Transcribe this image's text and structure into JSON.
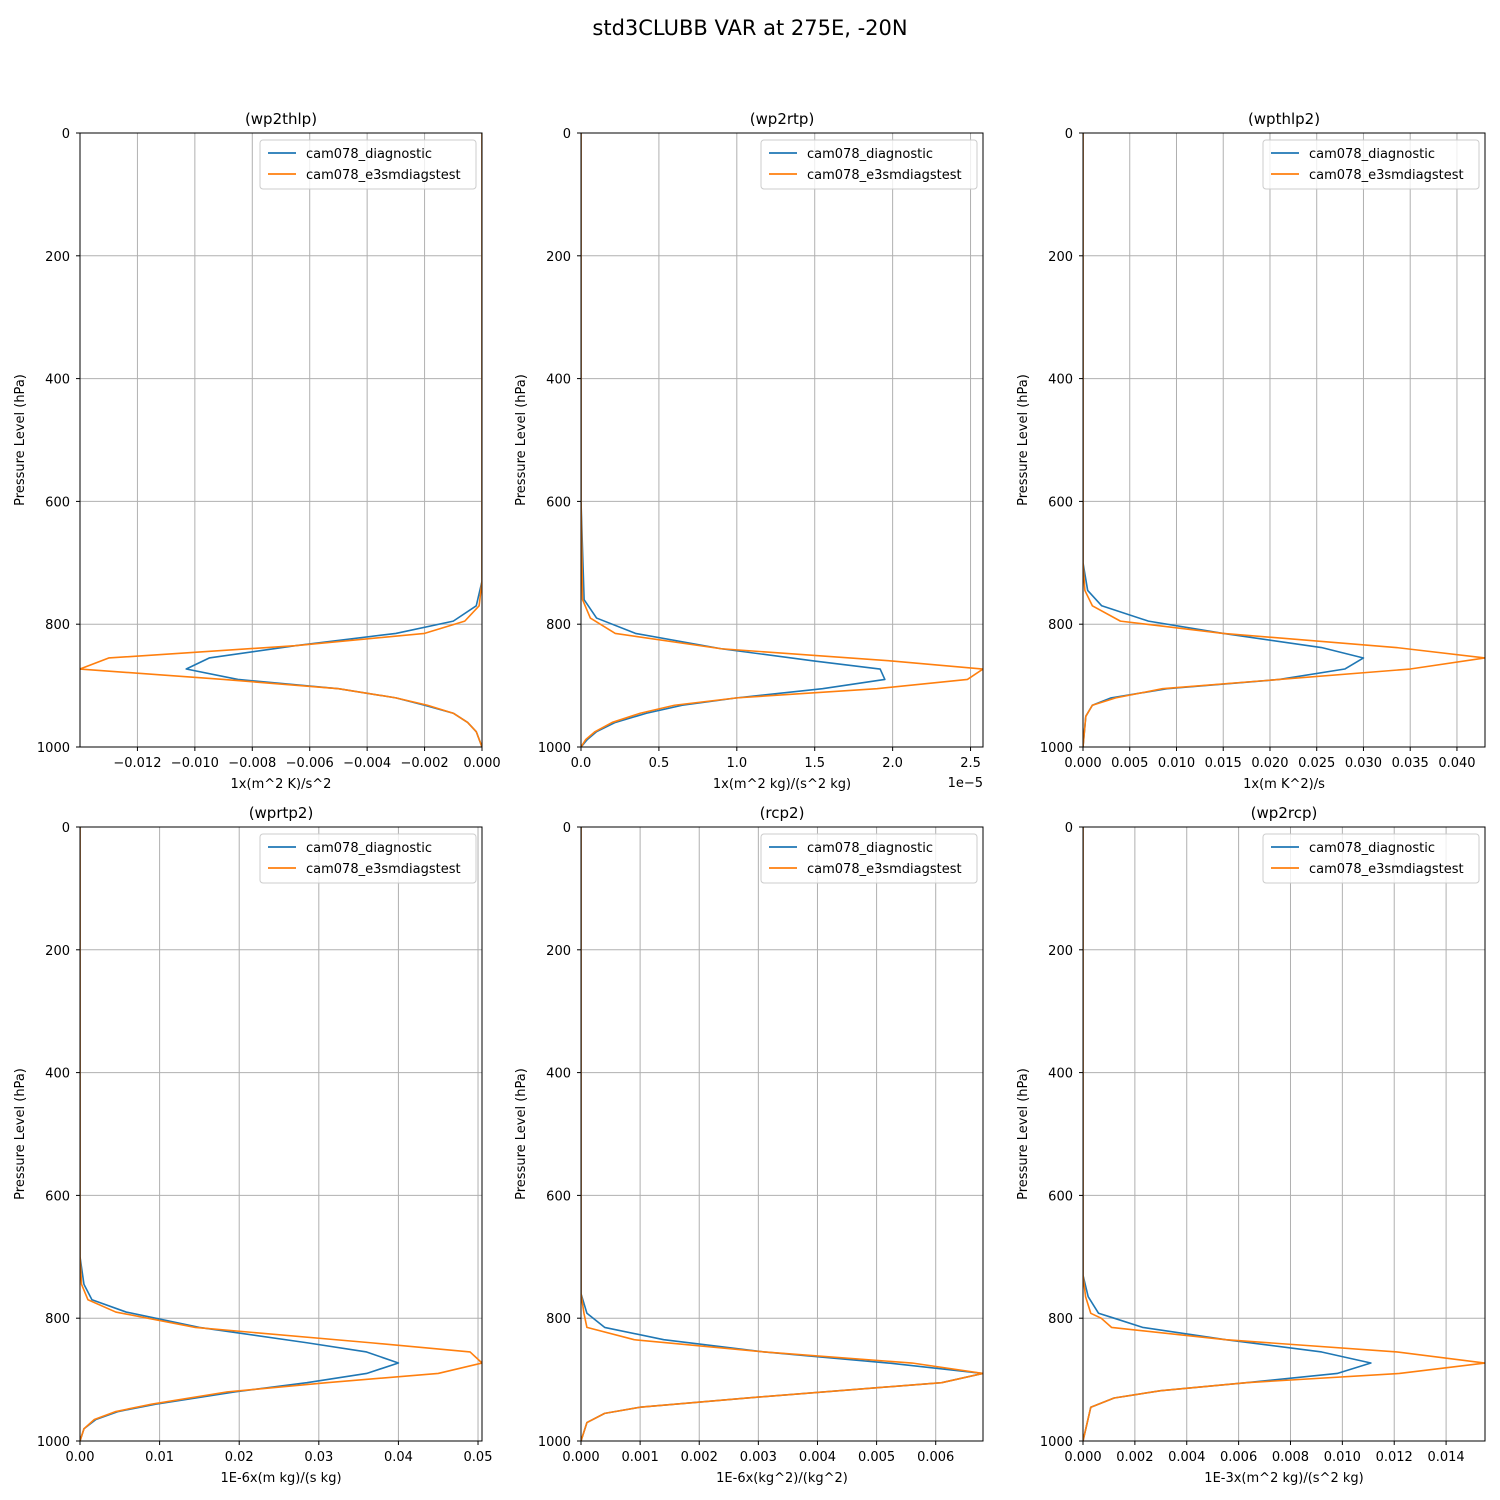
{
  "figure": {
    "suptitle": "std3CLUBB VAR at 275E, -20N"
  },
  "colors": {
    "cam078_diagnostic": "#1f77b4",
    "cam078_e3smdiagstest": "#ff7f0e",
    "grid": "#b0b0b0"
  },
  "chart_data": [
    {
      "type": "line",
      "title": "(wp2thlp)",
      "xlabel": "1x(m^2 K)/s^2",
      "ylabel": "Pressure Level (hPa)",
      "xlim": [
        -0.014,
        0.0
      ],
      "ylim": [
        1000,
        0
      ],
      "xticks": [
        -0.012,
        -0.01,
        -0.008,
        -0.006,
        -0.004,
        -0.002,
        0.0
      ],
      "xticklabels": [
        "−0.012",
        "−0.010",
        "−0.008",
        "−0.006",
        "−0.004",
        "−0.002",
        "0.000"
      ],
      "yticks": [
        0,
        200,
        400,
        600,
        800,
        1000
      ],
      "yticklabels": [
        "0",
        "200",
        "400",
        "600",
        "800",
        "1000"
      ],
      "x_offset_label": "",
      "legend": {
        "position": "upper right",
        "entries": [
          "cam078_diagnostic",
          "cam078_e3smdiagstest"
        ]
      },
      "grid": true,
      "series": [
        {
          "name": "cam078_diagnostic",
          "x": [
            0.0,
            0.0,
            0.0,
            0.0,
            -0.0002,
            -0.001,
            -0.003,
            -0.0065,
            -0.0095,
            -0.0103,
            -0.0085,
            -0.005,
            -0.003,
            -0.002,
            -0.001,
            -0.0005,
            -0.0002,
            0.0
          ],
          "y": [
            0,
            200,
            500,
            730,
            770,
            795,
            815,
            835,
            855,
            873,
            890,
            905,
            920,
            932,
            945,
            960,
            975,
            1000
          ]
        },
        {
          "name": "cam078_e3smdiagstest",
          "x": [
            0.0,
            0.0,
            0.0,
            0.0,
            -0.0001,
            -0.0006,
            -0.002,
            -0.0065,
            -0.013,
            -0.014,
            -0.009,
            -0.005,
            -0.003,
            -0.0019,
            -0.001,
            -0.0005,
            -0.0002,
            0.0
          ],
          "y": [
            0,
            200,
            500,
            730,
            770,
            795,
            815,
            835,
            855,
            873,
            890,
            905,
            920,
            932,
            945,
            960,
            975,
            1000
          ]
        }
      ]
    },
    {
      "type": "line",
      "title": "(wp2rtp)",
      "xlabel": "1x(m^2 kg)/(s^2 kg)",
      "ylabel": "Pressure Level (hPa)",
      "xlim": [
        0.0,
        2.58
      ],
      "ylim": [
        1000,
        0
      ],
      "xticks": [
        0.0,
        0.5,
        1.0,
        1.5,
        2.0,
        2.5
      ],
      "xticklabels": [
        "0.0",
        "0.5",
        "1.0",
        "1.5",
        "2.0",
        "2.5"
      ],
      "yticks": [
        0,
        200,
        400,
        600,
        800,
        1000
      ],
      "yticklabels": [
        "0",
        "200",
        "400",
        "600",
        "800",
        "1000"
      ],
      "x_offset_label": "1e−5",
      "legend": {
        "position": "upper right",
        "entries": [
          "cam078_diagnostic",
          "cam078_e3smdiagstest"
        ]
      },
      "grid": true,
      "series": [
        {
          "name": "cam078_diagnostic",
          "x": [
            0.0,
            0.0,
            0.0,
            0.02,
            0.1,
            0.35,
            0.9,
            1.5,
            1.92,
            1.95,
            1.55,
            1.0,
            0.65,
            0.42,
            0.22,
            0.1,
            0.04,
            0.0
          ],
          "y": [
            0,
            200,
            600,
            760,
            790,
            815,
            840,
            860,
            873,
            890,
            905,
            920,
            932,
            945,
            960,
            975,
            988,
            1000
          ]
        },
        {
          "name": "cam078_e3smdiagstest",
          "x": [
            0.0,
            0.0,
            0.0,
            0.01,
            0.06,
            0.22,
            0.9,
            2.0,
            2.58,
            2.48,
            1.9,
            1.0,
            0.6,
            0.38,
            0.2,
            0.09,
            0.03,
            0.0
          ],
          "y": [
            0,
            200,
            600,
            760,
            790,
            815,
            840,
            860,
            873,
            890,
            905,
            920,
            932,
            945,
            960,
            975,
            988,
            1000
          ]
        }
      ]
    },
    {
      "type": "line",
      "title": "(wpthlp2)",
      "xlabel": "1x(m K^2)/s",
      "ylabel": "Pressure Level (hPa)",
      "xlim": [
        0.0,
        0.043
      ],
      "ylim": [
        1000,
        0
      ],
      "xticks": [
        0.0,
        0.005,
        0.01,
        0.015,
        0.02,
        0.025,
        0.03,
        0.035,
        0.04
      ],
      "xticklabels": [
        "0.000",
        "0.005",
        "0.010",
        "0.015",
        "0.020",
        "0.025",
        "0.030",
        "0.035",
        "0.040"
      ],
      "yticks": [
        0,
        200,
        400,
        600,
        800,
        1000
      ],
      "yticklabels": [
        "0",
        "200",
        "400",
        "600",
        "800",
        "1000"
      ],
      "x_offset_label": "",
      "legend": {
        "position": "upper right",
        "entries": [
          "cam078_diagnostic",
          "cam078_e3smdiagstest"
        ]
      },
      "grid": true,
      "series": [
        {
          "name": "cam078_diagnostic",
          "x": [
            0.0,
            0.0,
            0.0,
            0.0005,
            0.002,
            0.007,
            0.015,
            0.0255,
            0.03,
            0.028,
            0.021,
            0.009,
            0.003,
            0.001,
            0.0003,
            0.0
          ],
          "y": [
            0,
            200,
            700,
            745,
            770,
            795,
            815,
            838,
            855,
            873,
            890,
            905,
            920,
            932,
            950,
            1000
          ]
        },
        {
          "name": "cam078_e3smdiagstest",
          "x": [
            0.0,
            0.0,
            0.0,
            0.0002,
            0.001,
            0.004,
            0.015,
            0.0335,
            0.043,
            0.035,
            0.021,
            0.0085,
            0.0035,
            0.001,
            0.0003,
            0.0
          ],
          "y": [
            0,
            200,
            700,
            745,
            770,
            795,
            815,
            838,
            855,
            873,
            890,
            905,
            920,
            932,
            950,
            1000
          ]
        }
      ]
    },
    {
      "type": "line",
      "title": "(wprtp2)",
      "xlabel": "1E-6x(m kg)/(s kg)",
      "ylabel": "Pressure Level (hPa)",
      "xlim": [
        0.0,
        0.0505
      ],
      "ylim": [
        1000,
        0
      ],
      "xticks": [
        0.0,
        0.01,
        0.02,
        0.03,
        0.04,
        0.05
      ],
      "xticklabels": [
        "0.00",
        "0.01",
        "0.02",
        "0.03",
        "0.04",
        "0.05"
      ],
      "yticks": [
        0,
        200,
        400,
        600,
        800,
        1000
      ],
      "yticklabels": [
        "0",
        "200",
        "400",
        "600",
        "800",
        "1000"
      ],
      "x_offset_label": "",
      "legend": {
        "position": "upper right",
        "entries": [
          "cam078_diagnostic",
          "cam078_e3smdiagstest"
        ]
      },
      "grid": true,
      "series": [
        {
          "name": "cam078_diagnostic",
          "x": [
            0.0,
            0.0,
            0.0,
            0.0005,
            0.0015,
            0.0058,
            0.015,
            0.0285,
            0.036,
            0.04,
            0.036,
            0.0285,
            0.0195,
            0.0095,
            0.0048,
            0.002,
            0.0005,
            0.0
          ],
          "y": [
            0,
            200,
            700,
            745,
            770,
            790,
            815,
            840,
            855,
            873,
            890,
            905,
            920,
            940,
            952,
            965,
            980,
            1000
          ]
        },
        {
          "name": "cam078_e3smdiagstest",
          "x": [
            0.0,
            0.0,
            0.0,
            0.0002,
            0.001,
            0.0045,
            0.0145,
            0.0365,
            0.049,
            0.0505,
            0.045,
            0.031,
            0.0185,
            0.009,
            0.0045,
            0.0018,
            0.0005,
            0.0
          ],
          "y": [
            0,
            200,
            700,
            745,
            770,
            790,
            815,
            840,
            855,
            873,
            890,
            905,
            920,
            940,
            952,
            965,
            980,
            1000
          ]
        }
      ]
    },
    {
      "type": "line",
      "title": "(rcp2)",
      "xlabel": "1E-6x(kg^2)/(kg^2)",
      "ylabel": "Pressure Level (hPa)",
      "xlim": [
        0.0,
        0.0068
      ],
      "ylim": [
        1000,
        0
      ],
      "xticks": [
        0.0,
        0.001,
        0.002,
        0.003,
        0.004,
        0.005,
        0.006
      ],
      "xticklabels": [
        "0.000",
        "0.001",
        "0.002",
        "0.003",
        "0.004",
        "0.005",
        "0.006"
      ],
      "yticks": [
        0,
        200,
        400,
        600,
        800,
        1000
      ],
      "yticklabels": [
        "0",
        "200",
        "400",
        "600",
        "800",
        "1000"
      ],
      "x_offset_label": "",
      "legend": {
        "position": "upper right",
        "entries": [
          "cam078_diagnostic",
          "cam078_e3smdiagstest"
        ]
      },
      "grid": true,
      "series": [
        {
          "name": "cam078_diagnostic",
          "x": [
            0.0,
            0.0,
            0.0,
            0.0,
            0.0001,
            0.0004,
            0.0014,
            0.0031,
            0.0052,
            0.0068,
            0.0061,
            0.0028,
            0.001,
            0.0004,
            0.0001,
            0.0
          ],
          "y": [
            0,
            200,
            600,
            760,
            792,
            815,
            835,
            855,
            873,
            890,
            905,
            930,
            945,
            955,
            970,
            1000
          ]
        },
        {
          "name": "cam078_e3smdiagstest",
          "x": [
            0.0,
            0.0,
            0.0,
            0.0,
            5e-05,
            0.0001,
            0.0009,
            0.0031,
            0.0056,
            0.0068,
            0.0061,
            0.0028,
            0.001,
            0.0004,
            0.0001,
            0.0
          ],
          "y": [
            0,
            200,
            600,
            760,
            792,
            815,
            835,
            855,
            873,
            890,
            905,
            930,
            945,
            955,
            970,
            1000
          ]
        }
      ]
    },
    {
      "type": "line",
      "title": "(wp2rcp)",
      "xlabel": "1E-3x(m^2 kg)/(s^2 kg)",
      "ylabel": "Pressure Level (hPa)",
      "xlim": [
        0.0,
        0.0155
      ],
      "ylim": [
        1000,
        0
      ],
      "xticks": [
        0.0,
        0.002,
        0.004,
        0.006,
        0.008,
        0.01,
        0.012,
        0.014
      ],
      "xticklabels": [
        "0.000",
        "0.002",
        "0.004",
        "0.006",
        "0.008",
        "0.010",
        "0.012",
        "0.014"
      ],
      "yticks": [
        0,
        200,
        400,
        600,
        800,
        1000
      ],
      "yticklabels": [
        "0",
        "200",
        "400",
        "600",
        "800",
        "1000"
      ],
      "x_offset_label": "",
      "legend": {
        "position": "upper right",
        "entries": [
          "cam078_diagnostic",
          "cam078_e3smdiagstest"
        ]
      },
      "grid": true,
      "series": [
        {
          "name": "cam078_diagnostic",
          "x": [
            0.0,
            0.0,
            0.0,
            0.0002,
            0.0006,
            0.0012,
            0.0023,
            0.0055,
            0.0092,
            0.0111,
            0.0098,
            0.0063,
            0.003,
            0.0012,
            0.0003,
            0.0
          ],
          "y": [
            0,
            200,
            730,
            765,
            792,
            800,
            815,
            835,
            855,
            873,
            890,
            905,
            918,
            930,
            945,
            1000
          ]
        },
        {
          "name": "cam078_e3smdiagstest",
          "x": [
            0.0,
            0.0,
            0.0,
            0.0001,
            0.0003,
            0.0007,
            0.0011,
            0.0055,
            0.0121,
            0.0155,
            0.0122,
            0.0063,
            0.003,
            0.0012,
            0.0003,
            0.0
          ],
          "y": [
            0,
            200,
            730,
            765,
            792,
            800,
            815,
            835,
            855,
            873,
            890,
            905,
            918,
            930,
            945,
            1000
          ]
        }
      ]
    }
  ]
}
